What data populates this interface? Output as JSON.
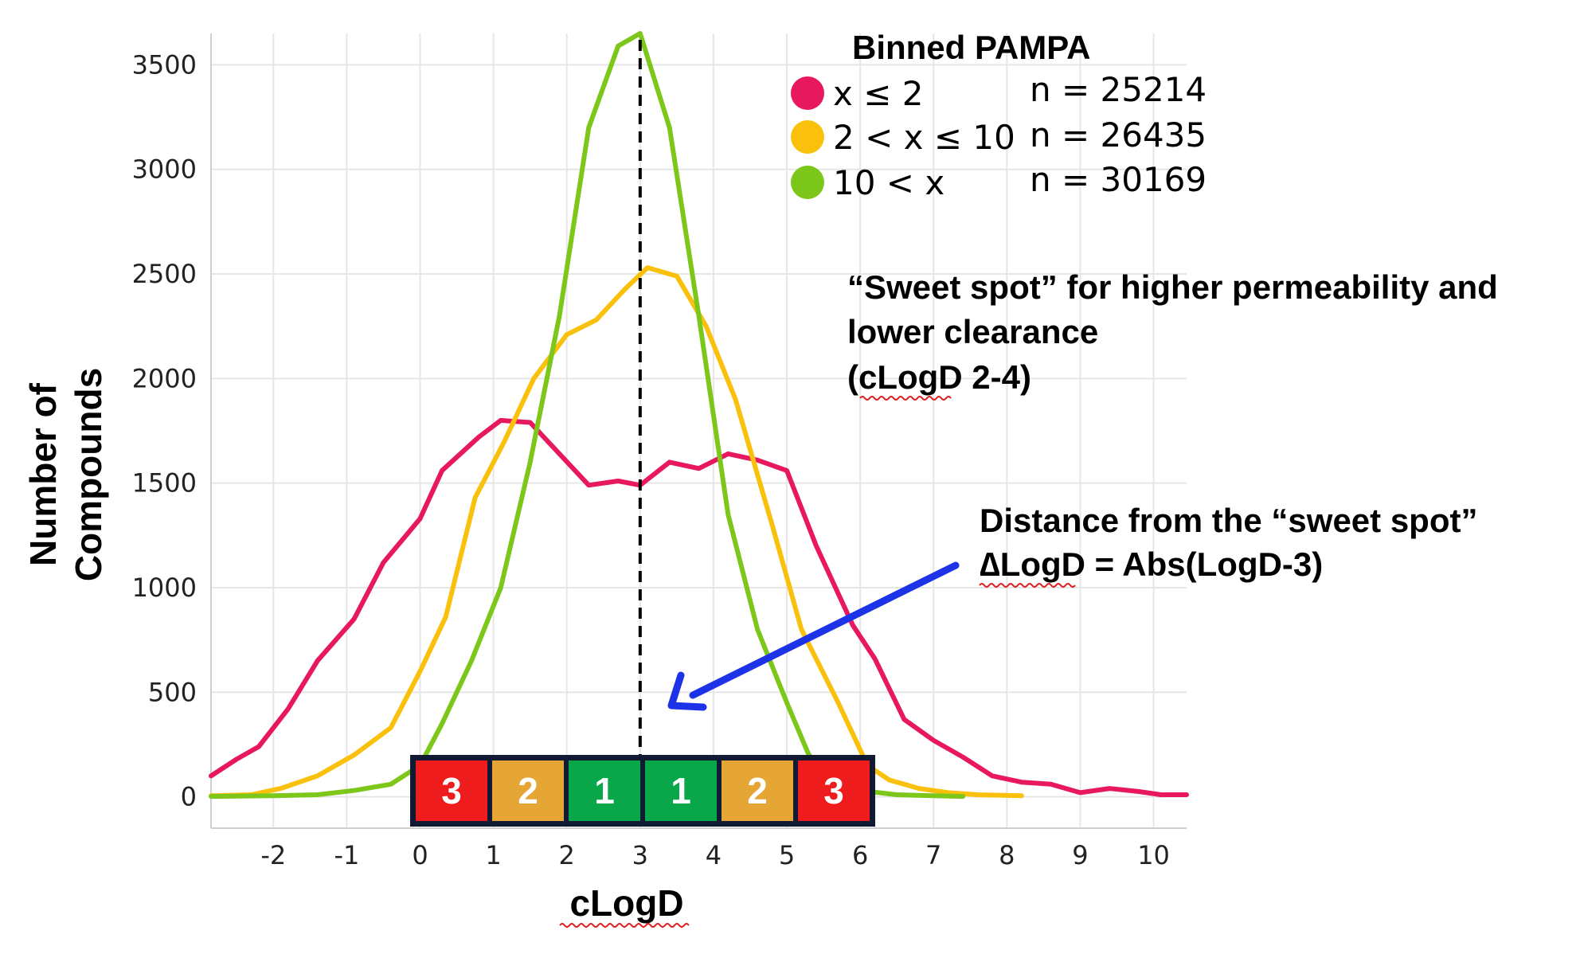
{
  "chart_data": {
    "type": "line",
    "title": "",
    "xlabel": "cLogD",
    "ylabel": [
      "Number of",
      "Compounds"
    ],
    "xlim": [
      -2.85,
      10.45
    ],
    "ylim": [
      -150,
      3650
    ],
    "xticks": [
      -2,
      -1,
      0,
      1,
      2,
      3,
      4,
      5,
      6,
      7,
      8,
      9,
      10
    ],
    "yticks": [
      0,
      500,
      1000,
      1500,
      2000,
      2500,
      3000,
      3500
    ],
    "grid": true,
    "legend": {
      "title": "Binned PAMPA",
      "position": "top-right",
      "items": [
        {
          "label": "x ≤ 2",
          "count": "n = 25214",
          "color": "#e8185e"
        },
        {
          "label": "2 < x ≤ 10",
          "count": "n = 26435",
          "color": "#f9c00c"
        },
        {
          "label": "10 < x",
          "count": "n = 30169",
          "color": "#7dc71b"
        }
      ]
    },
    "series": [
      {
        "name": "x ≤ 2",
        "color": "#e8185e",
        "points": [
          [
            -2.85,
            100
          ],
          [
            -2.5,
            180
          ],
          [
            -2.2,
            240
          ],
          [
            -1.8,
            420
          ],
          [
            -1.4,
            650
          ],
          [
            -0.9,
            850
          ],
          [
            -0.5,
            1120
          ],
          [
            0,
            1330
          ],
          [
            0.3,
            1560
          ],
          [
            0.8,
            1720
          ],
          [
            1.1,
            1800
          ],
          [
            1.5,
            1790
          ],
          [
            1.9,
            1640
          ],
          [
            2.3,
            1490
          ],
          [
            2.7,
            1510
          ],
          [
            3.0,
            1490
          ],
          [
            3.4,
            1600
          ],
          [
            3.8,
            1570
          ],
          [
            4.2,
            1640
          ],
          [
            4.6,
            1610
          ],
          [
            5.0,
            1560
          ],
          [
            5.4,
            1200
          ],
          [
            5.9,
            820
          ],
          [
            6.2,
            660
          ],
          [
            6.6,
            370
          ],
          [
            7.0,
            270
          ],
          [
            7.4,
            190
          ],
          [
            7.8,
            100
          ],
          [
            8.2,
            70
          ],
          [
            8.6,
            60
          ],
          [
            9.0,
            20
          ],
          [
            9.4,
            40
          ],
          [
            9.8,
            25
          ],
          [
            10.1,
            10
          ],
          [
            10.45,
            10
          ]
        ]
      },
      {
        "name": "2 < x ≤ 10",
        "color": "#f9c00c",
        "points": [
          [
            -2.85,
            5
          ],
          [
            -2.3,
            10
          ],
          [
            -1.9,
            40
          ],
          [
            -1.4,
            100
          ],
          [
            -0.9,
            200
          ],
          [
            -0.4,
            330
          ],
          [
            0,
            600
          ],
          [
            0.35,
            860
          ],
          [
            0.75,
            1430
          ],
          [
            1.15,
            1700
          ],
          [
            1.55,
            2000
          ],
          [
            2.0,
            2210
          ],
          [
            2.4,
            2280
          ],
          [
            2.8,
            2430
          ],
          [
            3.1,
            2530
          ],
          [
            3.5,
            2490
          ],
          [
            3.9,
            2250
          ],
          [
            4.3,
            1900
          ],
          [
            4.8,
            1300
          ],
          [
            5.2,
            800
          ],
          [
            5.7,
            450
          ],
          [
            6.1,
            150
          ],
          [
            6.4,
            80
          ],
          [
            6.8,
            40
          ],
          [
            7.2,
            20
          ],
          [
            7.6,
            10
          ],
          [
            8.2,
            5
          ]
        ]
      },
      {
        "name": "10 < x",
        "color": "#7dc71b",
        "points": [
          [
            -2.85,
            2
          ],
          [
            -2.0,
            5
          ],
          [
            -1.4,
            10
          ],
          [
            -0.9,
            30
          ],
          [
            -0.4,
            60
          ],
          [
            0,
            150
          ],
          [
            0.3,
            350
          ],
          [
            0.7,
            650
          ],
          [
            1.1,
            1000
          ],
          [
            1.5,
            1600
          ],
          [
            1.9,
            2300
          ],
          [
            2.3,
            3200
          ],
          [
            2.7,
            3590
          ],
          [
            3.0,
            3650
          ],
          [
            3.4,
            3200
          ],
          [
            3.8,
            2300
          ],
          [
            4.2,
            1350
          ],
          [
            4.6,
            800
          ],
          [
            5.0,
            450
          ],
          [
            5.3,
            200
          ],
          [
            5.7,
            80
          ],
          [
            6.0,
            30
          ],
          [
            6.5,
            10
          ],
          [
            7.0,
            5
          ],
          [
            7.4,
            2
          ]
        ]
      }
    ],
    "reference_line": {
      "x": 3,
      "style": "dashed",
      "color": "#000000"
    },
    "delta_boxes": [
      {
        "label": "3",
        "color": "#ee1c1c"
      },
      {
        "label": "2",
        "color": "#e5a636"
      },
      {
        "label": "1",
        "color": "#0aa64a"
      },
      {
        "label": "1",
        "color": "#0aa64a"
      },
      {
        "label": "2",
        "color": "#e5a636"
      },
      {
        "label": "3",
        "color": "#ee1c1c"
      }
    ],
    "annotations": {
      "sweet_spot": [
        "“Sweet spot” for higher permeability and",
        "lower clearance",
        "(cLogD 2-4)"
      ],
      "distance": [
        "Distance from the “sweet spot”",
        "∆LogD = Abs(LogD-3)"
      ],
      "arrow_color": "#1c33e8"
    }
  }
}
